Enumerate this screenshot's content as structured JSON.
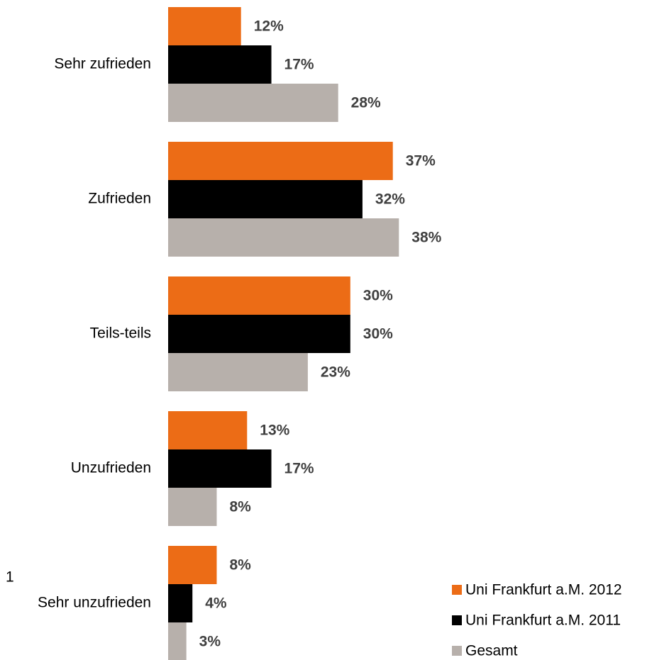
{
  "chart_data": {
    "type": "bar",
    "orientation": "horizontal",
    "categories": [
      "Sehr zufrieden",
      "Zufrieden",
      "Teils-teils",
      "Unzufrieden",
      "Sehr unzufrieden"
    ],
    "annotations": [
      "1"
    ],
    "series": [
      {
        "name": "Uni Frankfurt a.M. 2012",
        "color": "#ec6c16",
        "values": [
          12,
          37,
          30,
          13,
          8
        ],
        "value_labels": [
          "12%",
          "37%",
          "30%",
          "13%",
          "8%"
        ]
      },
      {
        "name": "Uni Frankfurt a.M. 2011",
        "color": "#000000",
        "values": [
          17,
          32,
          30,
          17,
          4
        ],
        "value_labels": [
          "17%",
          "32%",
          "30%",
          "17%",
          "4%"
        ]
      },
      {
        "name": "Gesamt",
        "color": "#b7b0ab",
        "values": [
          28,
          38,
          23,
          8,
          3
        ],
        "value_labels": [
          "28%",
          "38%",
          "23%",
          "8%",
          "3%"
        ]
      }
    ],
    "legend": "lower right"
  }
}
